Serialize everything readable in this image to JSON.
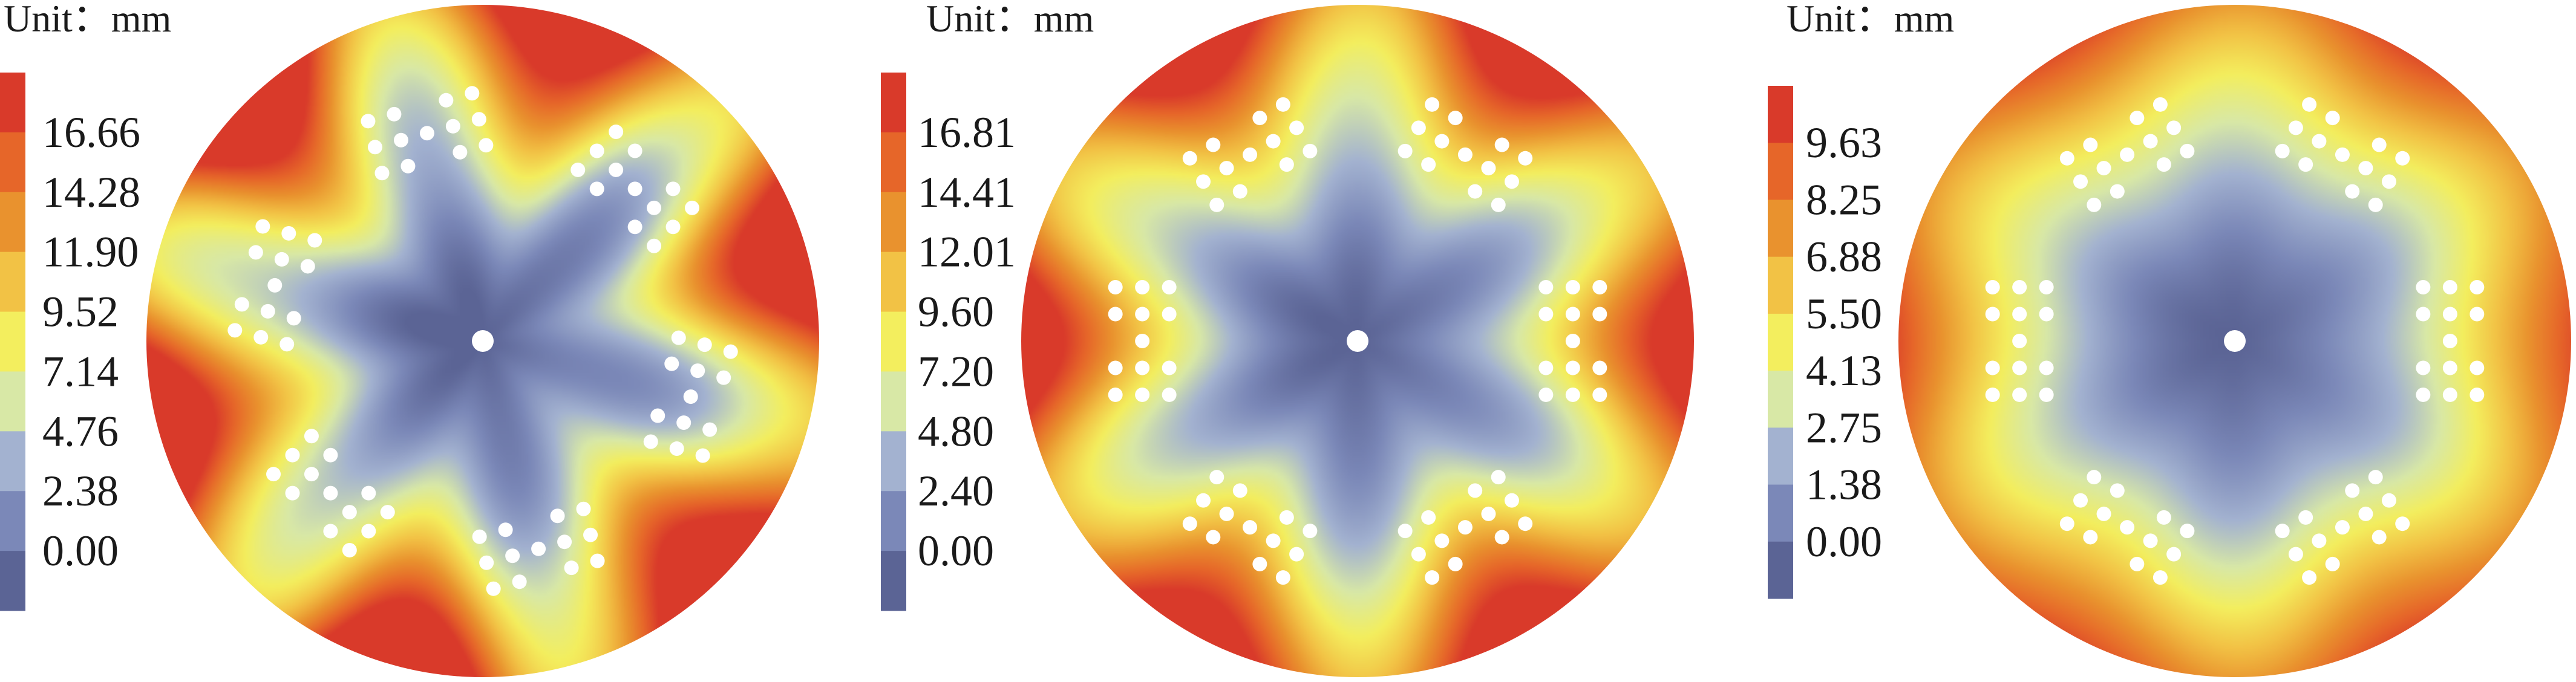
{
  "chart_data": [
    {
      "type": "heatmap",
      "unit_label": "Unit：mm",
      "colorbar_ticks": [
        "16.66",
        "14.28",
        "11.90",
        "9.52",
        "7.14",
        "4.76",
        "2.38",
        "0.00"
      ],
      "value_range": [
        0.0,
        19.04
      ],
      "hole_pattern": "hexagonal",
      "fields": {
        "center_min": 0.0,
        "edge_max": 18.2,
        "rotation_deg": 15,
        "hex_shape": 0.3,
        "noise": 1.0
      }
    },
    {
      "type": "heatmap",
      "unit_label": "Unit：mm",
      "colorbar_ticks": [
        "16.81",
        "14.41",
        "12.01",
        "9.60",
        "7.20",
        "4.80",
        "2.40",
        "0.00"
      ],
      "value_range": [
        0.0,
        19.21
      ],
      "hole_pattern": "hexagonal",
      "fields": {
        "center_min": 0.0,
        "edge_max": 17.8,
        "rotation_deg": 0,
        "hex_shape": 0.22,
        "noise": 0.5
      }
    },
    {
      "type": "heatmap",
      "unit_label": "Unit：mm",
      "colorbar_ticks": [
        "9.63",
        "8.25",
        "6.88",
        "5.50",
        "4.13",
        "2.75",
        "1.38",
        "0.00"
      ],
      "value_range": [
        0.0,
        11.0
      ],
      "hole_pattern": "hexagonal",
      "fields": {
        "center_min": 0.0,
        "edge_max": 9.3,
        "rotation_deg": 0,
        "hex_shape": 0.08,
        "noise": 0.15
      }
    }
  ],
  "colormap": [
    "#5b6495",
    "#7b88b8",
    "#a3b2d0",
    "#d8e8a6",
    "#f3ee5e",
    "#f2c245",
    "#e9922e",
    "#e66629",
    "#d93a2a"
  ]
}
